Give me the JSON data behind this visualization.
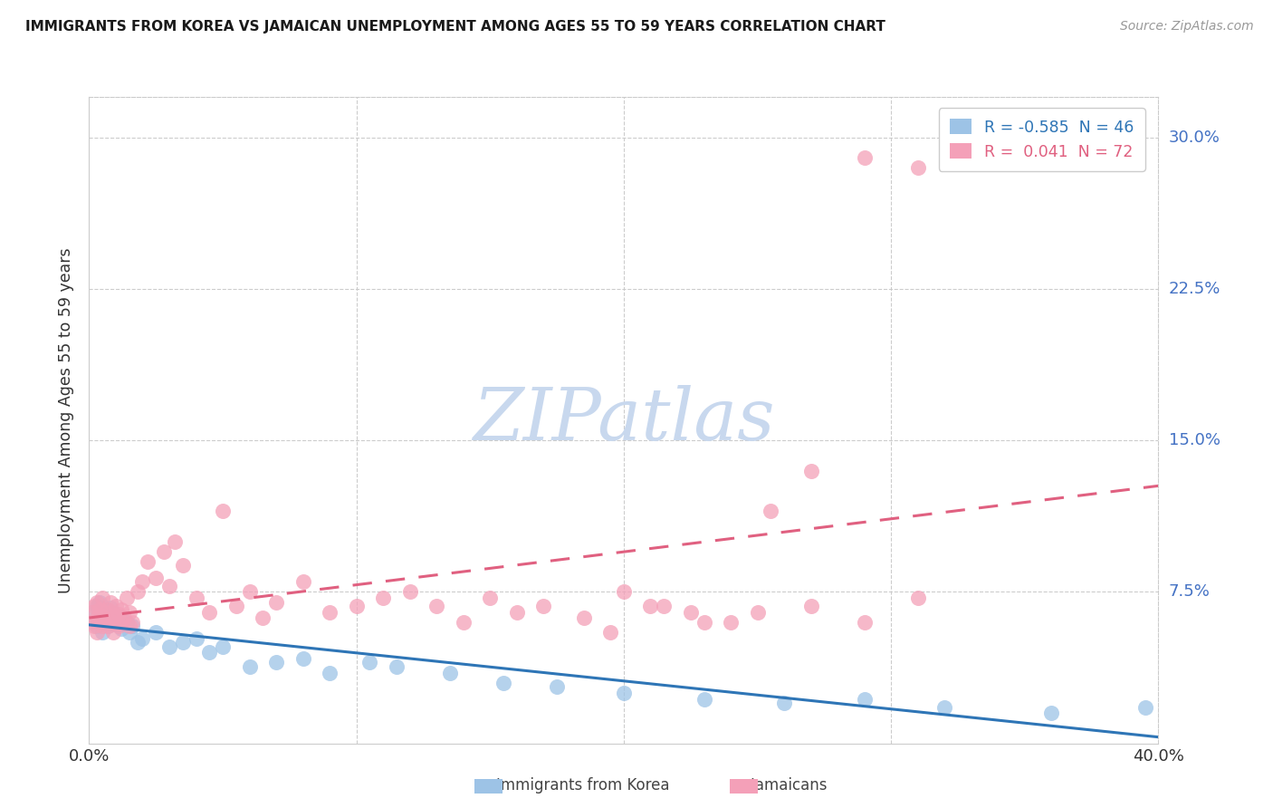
{
  "title": "IMMIGRANTS FROM KOREA VS JAMAICAN UNEMPLOYMENT AMONG AGES 55 TO 59 YEARS CORRELATION CHART",
  "source": "Source: ZipAtlas.com",
  "ylabel": "Unemployment Among Ages 55 to 59 years",
  "x_min": 0.0,
  "x_max": 0.4,
  "y_min": 0.0,
  "y_max": 0.32,
  "x_ticks": [
    0.0,
    0.1,
    0.2,
    0.3,
    0.4
  ],
  "x_tick_labels": [
    "0.0%",
    "",
    "",
    "",
    "40.0%"
  ],
  "y_ticks": [
    0.0,
    0.075,
    0.15,
    0.225,
    0.3
  ],
  "y_tick_labels_right": [
    "",
    "7.5%",
    "15.0%",
    "22.5%",
    "30.0%"
  ],
  "korea_color": "#9dc3e6",
  "korea_trend_color": "#2e75b6",
  "jamaican_color": "#f4a0b8",
  "jamaican_trend_color": "#e06080",
  "legend_korea_label": "R = -0.585  N = 46",
  "legend_jamaican_label": "R =  0.041  N = 72",
  "watermark": "ZIPatlas",
  "watermark_color": "#c8d8ee",
  "korea_scatter_x": [
    0.001,
    0.002,
    0.003,
    0.003,
    0.004,
    0.004,
    0.005,
    0.005,
    0.006,
    0.006,
    0.007,
    0.007,
    0.008,
    0.008,
    0.009,
    0.01,
    0.011,
    0.012,
    0.013,
    0.014,
    0.015,
    0.016,
    0.018,
    0.02,
    0.025,
    0.03,
    0.035,
    0.04,
    0.045,
    0.05,
    0.06,
    0.07,
    0.08,
    0.09,
    0.105,
    0.115,
    0.135,
    0.155,
    0.175,
    0.2,
    0.23,
    0.26,
    0.29,
    0.32,
    0.36,
    0.395
  ],
  "korea_scatter_y": [
    0.06,
    0.065,
    0.058,
    0.068,
    0.062,
    0.07,
    0.055,
    0.063,
    0.06,
    0.066,
    0.058,
    0.064,
    0.062,
    0.067,
    0.059,
    0.061,
    0.063,
    0.057,
    0.059,
    0.06,
    0.055,
    0.058,
    0.05,
    0.052,
    0.055,
    0.048,
    0.05,
    0.052,
    0.045,
    0.048,
    0.038,
    0.04,
    0.042,
    0.035,
    0.04,
    0.038,
    0.035,
    0.03,
    0.028,
    0.025,
    0.022,
    0.02,
    0.022,
    0.018,
    0.015,
    0.018
  ],
  "jamaican_scatter_x": [
    0.001,
    0.001,
    0.002,
    0.002,
    0.003,
    0.003,
    0.003,
    0.004,
    0.004,
    0.005,
    0.005,
    0.005,
    0.006,
    0.006,
    0.007,
    0.007,
    0.008,
    0.008,
    0.009,
    0.009,
    0.01,
    0.01,
    0.011,
    0.011,
    0.012,
    0.012,
    0.013,
    0.014,
    0.015,
    0.015,
    0.016,
    0.018,
    0.02,
    0.022,
    0.025,
    0.028,
    0.03,
    0.032,
    0.035,
    0.04,
    0.045,
    0.05,
    0.055,
    0.06,
    0.065,
    0.07,
    0.08,
    0.09,
    0.1,
    0.11,
    0.12,
    0.13,
    0.14,
    0.15,
    0.16,
    0.17,
    0.185,
    0.2,
    0.215,
    0.23,
    0.25,
    0.27,
    0.29,
    0.31,
    0.31,
    0.29,
    0.27,
    0.255,
    0.24,
    0.225,
    0.21,
    0.195
  ],
  "jamaican_scatter_y": [
    0.06,
    0.065,
    0.058,
    0.068,
    0.055,
    0.062,
    0.07,
    0.06,
    0.066,
    0.058,
    0.063,
    0.072,
    0.06,
    0.065,
    0.058,
    0.066,
    0.062,
    0.07,
    0.055,
    0.06,
    0.063,
    0.068,
    0.058,
    0.064,
    0.06,
    0.066,
    0.062,
    0.072,
    0.058,
    0.065,
    0.06,
    0.075,
    0.08,
    0.09,
    0.082,
    0.095,
    0.078,
    0.1,
    0.088,
    0.072,
    0.065,
    0.115,
    0.068,
    0.075,
    0.062,
    0.07,
    0.08,
    0.065,
    0.068,
    0.072,
    0.075,
    0.068,
    0.06,
    0.072,
    0.065,
    0.068,
    0.062,
    0.075,
    0.068,
    0.06,
    0.065,
    0.068,
    0.06,
    0.072,
    0.285,
    0.29,
    0.135,
    0.115,
    0.06,
    0.065,
    0.068,
    0.055
  ]
}
